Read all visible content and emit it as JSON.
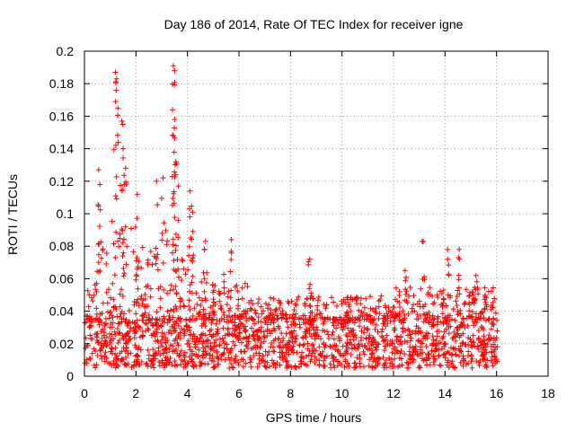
{
  "chart_data": {
    "type": "scatter",
    "title": "Day 186 of 2014, Rate Of TEC Index for receiver igne",
    "xlabel": "GPS time / hours",
    "ylabel": "ROTI / TECUs",
    "xlim": [
      0,
      18
    ],
    "ylim": [
      0,
      0.2
    ],
    "xticks": [
      "0",
      "2",
      "4",
      "6",
      "8",
      "10",
      "12",
      "14",
      "16",
      "18"
    ],
    "yticks": [
      "0",
      "0.02",
      "0.04",
      "0.06",
      "0.08",
      "0.1",
      "0.12",
      "0.14",
      "0.16",
      "0.18",
      "0.2"
    ],
    "grid": true,
    "marker": "plus",
    "series": [
      {
        "name": "ROTI",
        "color": "#ff0000",
        "x_range": [
          0,
          16.05
        ],
        "typical_range": [
          0.005,
          0.035
        ],
        "peaks": [
          {
            "x": 1.2,
            "y": 0.187
          },
          {
            "x": 1.25,
            "y": 0.183
          },
          {
            "x": 1.3,
            "y": 0.165
          },
          {
            "x": 1.45,
            "y": 0.157
          },
          {
            "x": 1.5,
            "y": 0.14
          },
          {
            "x": 1.6,
            "y": 0.128
          },
          {
            "x": 0.55,
            "y": 0.127
          },
          {
            "x": 0.6,
            "y": 0.118
          },
          {
            "x": 2.05,
            "y": 0.112
          },
          {
            "x": 2.8,
            "y": 0.12
          },
          {
            "x": 3.05,
            "y": 0.122
          },
          {
            "x": 3.45,
            "y": 0.191
          },
          {
            "x": 3.5,
            "y": 0.188
          },
          {
            "x": 3.5,
            "y": 0.158
          },
          {
            "x": 3.45,
            "y": 0.148
          },
          {
            "x": 3.55,
            "y": 0.132
          },
          {
            "x": 3.65,
            "y": 0.117
          },
          {
            "x": 4.1,
            "y": 0.114
          },
          {
            "x": 4.2,
            "y": 0.101
          },
          {
            "x": 4.7,
            "y": 0.083
          },
          {
            "x": 5.7,
            "y": 0.084
          },
          {
            "x": 8.75,
            "y": 0.072
          },
          {
            "x": 13.15,
            "y": 0.083
          },
          {
            "x": 14.1,
            "y": 0.078
          },
          {
            "x": 14.55,
            "y": 0.078
          },
          {
            "x": 15.2,
            "y": 0.062
          },
          {
            "x": 12.45,
            "y": 0.065
          }
        ]
      }
    ]
  }
}
